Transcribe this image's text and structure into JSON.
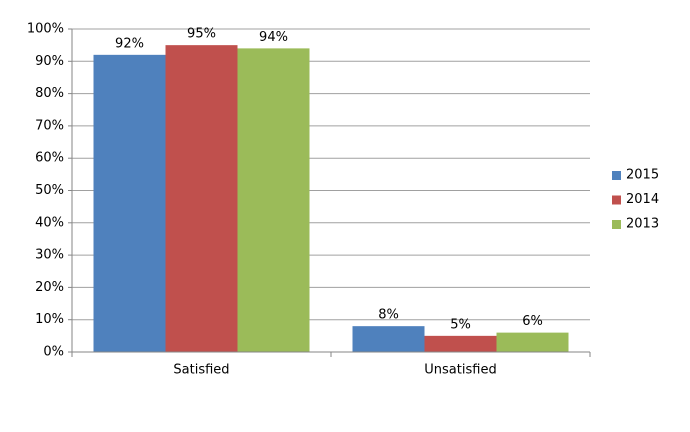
{
  "chart_data": {
    "type": "grouped-bar",
    "categories": [
      "Satisfied",
      "Unsatisfied"
    ],
    "series": [
      {
        "name": "2015",
        "color": "#4f81bd",
        "values": [
          92,
          8
        ],
        "value_labels": [
          "92%",
          "8%"
        ]
      },
      {
        "name": "2014",
        "color": "#c0504d",
        "values": [
          95,
          5
        ],
        "value_labels": [
          "95%",
          "5%"
        ]
      },
      {
        "name": "2013",
        "color": "#9bbb59",
        "values": [
          94,
          6
        ],
        "value_labels": [
          "94%",
          "6%"
        ]
      }
    ],
    "ylim": [
      0,
      100
    ],
    "yticks": [
      {
        "value": 0,
        "label": "0%"
      },
      {
        "value": 10,
        "label": "10%"
      },
      {
        "value": 20,
        "label": "20%"
      },
      {
        "value": 30,
        "label": "30%"
      },
      {
        "value": 40,
        "label": "40%"
      },
      {
        "value": 50,
        "label": "50%"
      },
      {
        "value": 60,
        "label": "60%"
      },
      {
        "value": 70,
        "label": "70%"
      },
      {
        "value": 80,
        "label": "80%"
      },
      {
        "value": 90,
        "label": "90%"
      },
      {
        "value": 100,
        "label": "100%"
      }
    ],
    "grid": true,
    "legend": "right"
  }
}
